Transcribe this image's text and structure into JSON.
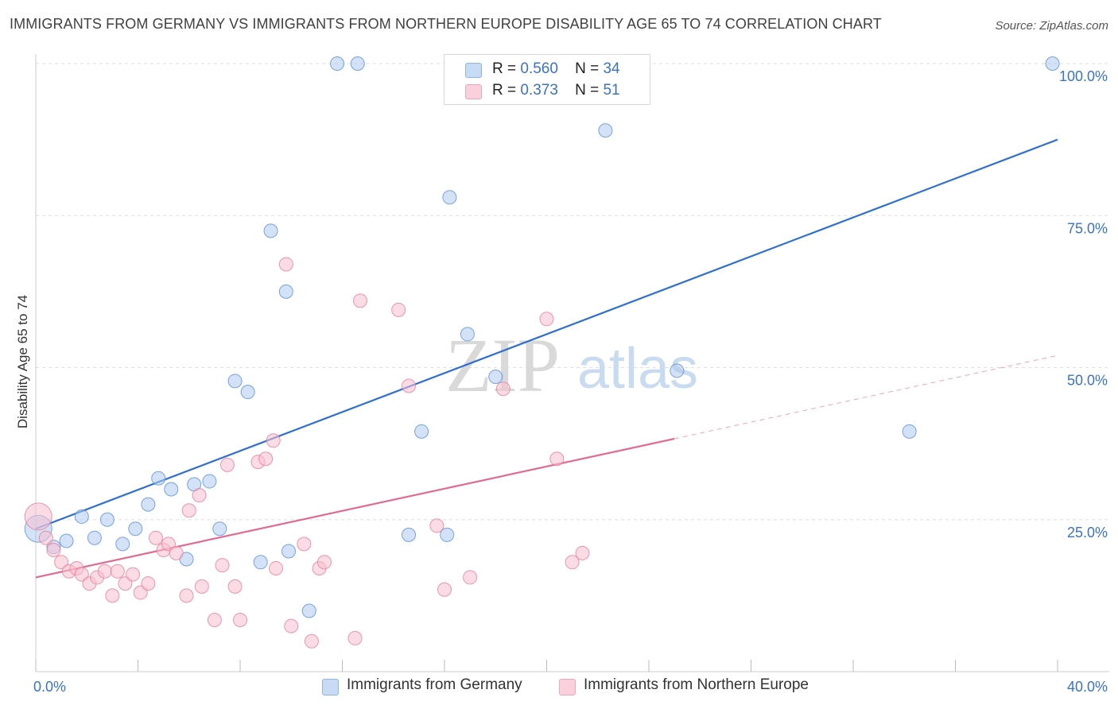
{
  "title": "IMMIGRANTS FROM GERMANY VS IMMIGRANTS FROM NORTHERN EUROPE DISABILITY AGE 65 TO 74 CORRELATION CHART",
  "source": "Source: ZipAtlas.com",
  "watermark": {
    "zip": "ZIP",
    "atlas": "atlas"
  },
  "legend": {
    "r_label": "R =",
    "n_label": "N =",
    "rows": [
      {
        "r": "0.560",
        "n": "34",
        "color": "#aecbef"
      },
      {
        "r": "0.373",
        "n": "51",
        "color": "#f7bfd0"
      }
    ]
  },
  "chart_data": {
    "type": "scatter",
    "title": "IMMIGRANTS FROM GERMANY VS IMMIGRANTS FROM NORTHERN EUROPE DISABILITY AGE 65 TO 74 CORRELATION CHART",
    "xlabel": "",
    "ylabel": "Disability Age 65 to 74",
    "xlim": [
      0,
      40
    ],
    "ylim": [
      0,
      100
    ],
    "x_tick_labels": [
      "0.0%",
      "40.0%"
    ],
    "y_ticks": [
      {
        "value": 25,
        "label": "25.0%"
      },
      {
        "value": 50,
        "label": "50.0%"
      },
      {
        "value": 75,
        "label": "75.0%"
      },
      {
        "value": 100,
        "label": "100.0%"
      }
    ],
    "grid": "horizontal dashed",
    "legend_position": "top-center",
    "series": [
      {
        "name": "Immigrants from Germany",
        "color": "#5b8fd6",
        "fill": "#aecbef",
        "r": 0.56,
        "n": 34,
        "trend": {
          "x0": 0,
          "y0": 23.5,
          "x1": 40,
          "y1": 87.5,
          "style": "solid",
          "color": "#2f6fd0"
        },
        "points": [
          [
            0.1,
            23.5
          ],
          [
            0.7,
            20.5
          ],
          [
            1.2,
            21.5
          ],
          [
            1.8,
            25.5
          ],
          [
            2.3,
            22
          ],
          [
            2.8,
            25
          ],
          [
            3.4,
            21
          ],
          [
            3.9,
            23.5
          ],
          [
            4.4,
            27.5
          ],
          [
            4.8,
            31.8
          ],
          [
            5.3,
            30
          ],
          [
            5.9,
            18.5
          ],
          [
            6.2,
            30.8
          ],
          [
            6.8,
            31.3
          ],
          [
            7.2,
            23.5
          ],
          [
            7.8,
            47.8
          ],
          [
            8.3,
            46
          ],
          [
            8.8,
            18
          ],
          [
            9.2,
            72.5
          ],
          [
            9.8,
            62.5
          ],
          [
            9.9,
            19.8
          ],
          [
            10.7,
            10
          ],
          [
            11.8,
            100
          ],
          [
            12.6,
            100
          ],
          [
            14.6,
            22.5
          ],
          [
            15.1,
            39.5
          ],
          [
            16.1,
            22.5
          ],
          [
            16.2,
            78
          ],
          [
            16.9,
            55.5
          ],
          [
            18.0,
            48.5
          ],
          [
            22.3,
            89
          ],
          [
            25.1,
            49.5
          ],
          [
            34.2,
            39.5
          ],
          [
            39.8,
            100
          ]
        ]
      },
      {
        "name": "Immigrants from Northern Europe",
        "color": "#e57d9c",
        "fill": "#f7bfd0",
        "r": 0.373,
        "n": 51,
        "trend": {
          "x0": 0,
          "y0": 15.5,
          "x1": 25,
          "y1": 38.3,
          "style": "solid",
          "color": "#e06a92",
          "extension": {
            "x1": 40,
            "y1": 52,
            "style": "dashed"
          }
        },
        "points": [
          [
            0.1,
            25.5
          ],
          [
            0.4,
            22
          ],
          [
            0.7,
            20
          ],
          [
            1.0,
            18
          ],
          [
            1.3,
            16.5
          ],
          [
            1.6,
            17
          ],
          [
            1.8,
            16
          ],
          [
            2.1,
            14.5
          ],
          [
            2.4,
            15.5
          ],
          [
            2.7,
            16.5
          ],
          [
            3.0,
            12.5
          ],
          [
            3.2,
            16.5
          ],
          [
            3.5,
            14.5
          ],
          [
            3.8,
            16
          ],
          [
            4.1,
            13
          ],
          [
            4.4,
            14.5
          ],
          [
            4.7,
            22
          ],
          [
            5.0,
            20
          ],
          [
            5.2,
            21
          ],
          [
            5.5,
            19.5
          ],
          [
            5.9,
            12.5
          ],
          [
            6.0,
            26.5
          ],
          [
            6.4,
            29
          ],
          [
            6.5,
            14
          ],
          [
            7.0,
            8.5
          ],
          [
            7.3,
            17.5
          ],
          [
            7.5,
            34
          ],
          [
            7.8,
            14
          ],
          [
            8.0,
            8.5
          ],
          [
            8.7,
            34.5
          ],
          [
            9.0,
            35
          ],
          [
            9.3,
            38
          ],
          [
            9.4,
            17
          ],
          [
            9.8,
            67
          ],
          [
            10.0,
            7.5
          ],
          [
            10.5,
            21
          ],
          [
            10.8,
            5
          ],
          [
            11.1,
            17
          ],
          [
            11.3,
            18
          ],
          [
            12.5,
            5.5
          ],
          [
            12.7,
            61
          ],
          [
            14.2,
            59.5
          ],
          [
            14.6,
            47
          ],
          [
            15.7,
            24
          ],
          [
            16.0,
            13.5
          ],
          [
            17.0,
            15.5
          ],
          [
            18.3,
            46.5
          ],
          [
            20.0,
            58
          ],
          [
            20.4,
            35
          ],
          [
            21.0,
            18
          ],
          [
            21.4,
            19.5
          ]
        ]
      }
    ]
  }
}
